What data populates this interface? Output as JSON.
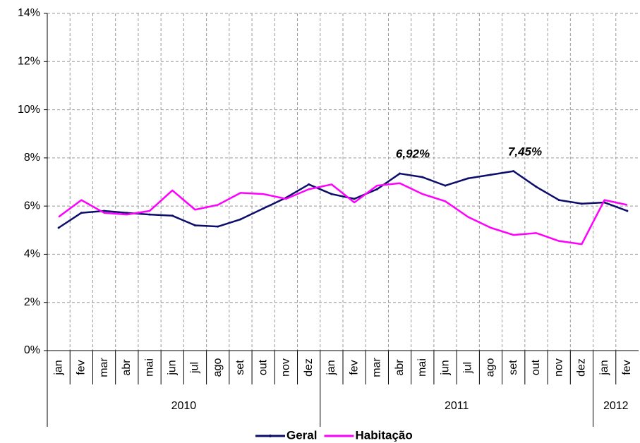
{
  "chart_data": {
    "type": "line",
    "categories": [
      "jan",
      "fev",
      "mar",
      "abr",
      "mai",
      "jun",
      "jul",
      "ago",
      "set",
      "out",
      "nov",
      "dez",
      "jan",
      "fev",
      "mar",
      "abr",
      "mai",
      "jun",
      "jul",
      "ago",
      "set",
      "out",
      "nov",
      "dez",
      "jan",
      "fev"
    ],
    "years": [
      "2010",
      "2010",
      "2010",
      "2010",
      "2010",
      "2010",
      "2010",
      "2010",
      "2010",
      "2010",
      "2010",
      "2010",
      "2011",
      "2011",
      "2011",
      "2011",
      "2011",
      "2011",
      "2011",
      "2011",
      "2011",
      "2011",
      "2011",
      "2011",
      "2012",
      "2012"
    ],
    "series": [
      {
        "name": "Geral",
        "color": "#0d0d6b",
        "values": [
          5.1,
          5.72,
          5.8,
          5.72,
          5.65,
          5.6,
          5.2,
          5.15,
          5.45,
          5.9,
          6.35,
          6.9,
          6.5,
          6.3,
          6.7,
          7.35,
          7.2,
          6.85,
          7.15,
          7.3,
          7.45,
          6.8,
          6.25,
          6.1,
          6.15,
          5.8
        ]
      },
      {
        "name": "Habitação",
        "color": "#ff00ff",
        "values": [
          5.55,
          6.25,
          5.72,
          5.65,
          5.8,
          6.65,
          5.85,
          6.05,
          6.55,
          6.5,
          6.3,
          6.7,
          6.9,
          6.15,
          6.85,
          6.95,
          6.5,
          6.2,
          5.55,
          5.1,
          4.8,
          4.88,
          4.55,
          4.42,
          6.25,
          6.05
        ]
      }
    ],
    "annotations": [
      "6,92%",
      "7,45%"
    ],
    "ylim": [
      0,
      14
    ],
    "yticks": [
      {
        "value": 0,
        "label": "0%"
      },
      {
        "value": 2,
        "label": "2%"
      },
      {
        "value": 4,
        "label": "4%"
      },
      {
        "value": 6,
        "label": "6%"
      },
      {
        "value": 8,
        "label": "8%"
      },
      {
        "value": 10,
        "label": "10%"
      },
      {
        "value": 12,
        "label": "12%"
      },
      {
        "value": 14,
        "label": "14%"
      }
    ],
    "grid": true,
    "legend": "bottom"
  }
}
